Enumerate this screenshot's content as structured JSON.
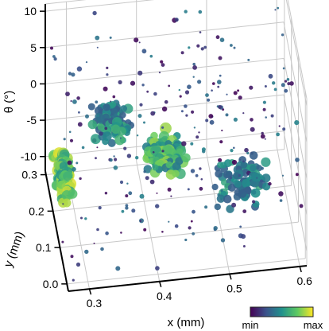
{
  "chart_data": {
    "type": "scatter",
    "projection": "3d",
    "xlabel": "x (mm)",
    "ylabel": "y (mm)",
    "zlabel": "θ (°)",
    "xlim": [
      0.27,
      0.61
    ],
    "ylim": [
      -0.02,
      0.31
    ],
    "zlim": [
      -12,
      11
    ],
    "x_ticks": [
      "0.3",
      "0.4",
      "0.5",
      "0.6"
    ],
    "y_ticks": [
      "0.0",
      "0.1",
      "0.2",
      "0.3"
    ],
    "z_ticks": [
      "10",
      "5",
      "0",
      "-5",
      "-10"
    ],
    "x_tick_values": [
      0.3,
      0.4,
      0.5,
      0.6
    ],
    "y_tick_values": [
      0.0,
      0.1,
      0.2,
      0.3
    ],
    "z_tick_values": [
      10,
      5,
      0,
      -5,
      -10
    ],
    "grid": true,
    "colorbar": {
      "min_label": "min",
      "max_label": "max",
      "colormap": "viridis",
      "colors": [
        "#440154",
        "#3b528b",
        "#21918c",
        "#5ec962",
        "#fde725"
      ]
    },
    "clusters": [
      {
        "x": [
          0.28,
          0.3
        ],
        "y": [
          0.2,
          0.3
        ],
        "z": [
          -11,
          -8
        ],
        "density": "highest",
        "intensity": 0.95
      },
      {
        "x": [
          0.4,
          0.45
        ],
        "y": [
          0.1,
          0.2
        ],
        "z": [
          -4,
          -2
        ],
        "density": "high",
        "intensity": 0.85
      },
      {
        "x": [
          0.33,
          0.38
        ],
        "y": [
          0.18,
          0.26
        ],
        "z": [
          -3,
          0
        ],
        "density": "medium",
        "intensity": 0.65
      },
      {
        "x": [
          0.5,
          0.57
        ],
        "y": [
          0.1,
          0.2
        ],
        "z": [
          -10,
          -6
        ],
        "density": "medium",
        "intensity": 0.6
      }
    ],
    "background_points": "sparse small points spread throughout the volume, mostly low intensity (purple/blue)"
  }
}
